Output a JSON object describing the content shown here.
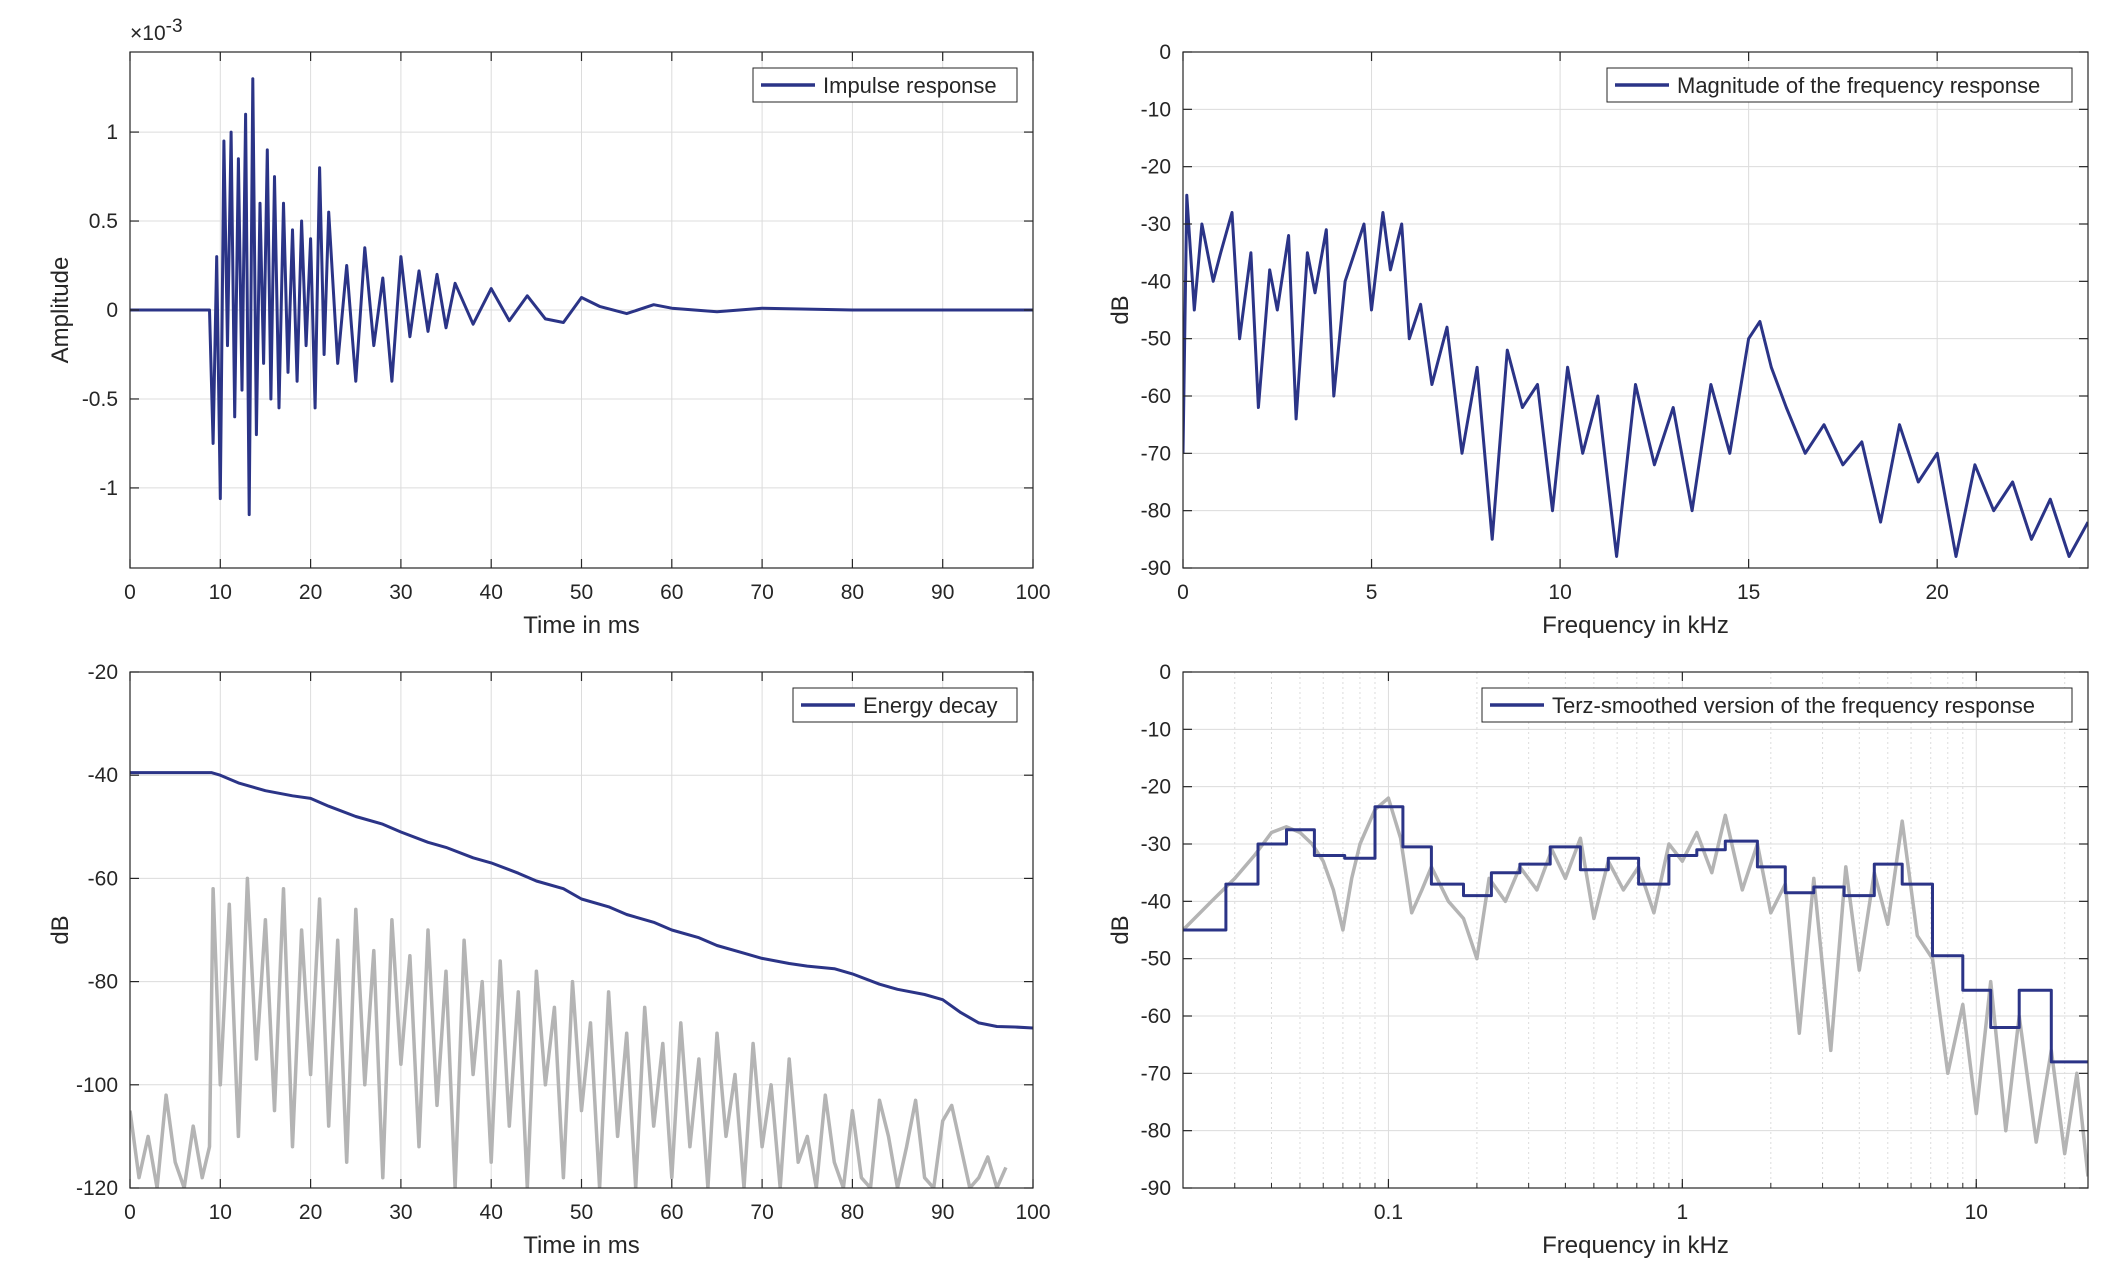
{
  "colors": {
    "main_series": "#2b3487",
    "secondary_series": "#b4b4b4",
    "grid": "#dcdcdc",
    "axes": "#262626"
  },
  "chart_data": [
    {
      "type": "line",
      "title": "",
      "legend": "Impulse response",
      "legend_position": "top-right",
      "xlabel": "Time in ms",
      "ylabel": "Amplitude",
      "exponent_label": "×10",
      "exponent_power": "-3",
      "xlim": [
        0,
        100
      ],
      "ylim": [
        -1.45,
        1.45
      ],
      "xticks": [
        0,
        10,
        20,
        30,
        40,
        50,
        60,
        70,
        80,
        90,
        100
      ],
      "xtick_labels": [
        "0",
        "10",
        "20",
        "30",
        "40",
        "50",
        "60",
        "70",
        "80",
        "90",
        "100"
      ],
      "yticks": [
        -1,
        -0.5,
        0,
        0.5,
        1
      ],
      "ytick_labels": [
        "-1",
        "-0.5",
        "0",
        "0.5",
        "1"
      ],
      "grid": true,
      "series": [
        {
          "name": "Impulse response",
          "x": [
            0,
            8.8,
            9.2,
            9.6,
            10.0,
            10.4,
            10.8,
            11.2,
            11.6,
            12.0,
            12.4,
            12.8,
            13.2,
            13.6,
            14.0,
            14.4,
            14.8,
            15.2,
            15.6,
            16.0,
            16.5,
            17.0,
            17.5,
            18.0,
            18.5,
            19.0,
            19.5,
            20.0,
            20.5,
            21.0,
            21.5,
            22.0,
            23.0,
            24.0,
            25.0,
            26.0,
            27.0,
            28.0,
            29.0,
            30.0,
            31.0,
            32.0,
            33.0,
            34.0,
            35.0,
            36.0,
            38.0,
            40.0,
            42.0,
            44.0,
            46.0,
            48.0,
            50.0,
            52.0,
            55.0,
            58.0,
            60.0,
            65.0,
            70.0,
            80.0,
            90.0,
            100.0
          ],
          "y": [
            0,
            0,
            -0.75,
            0.3,
            -1.06,
            0.95,
            -0.2,
            1.0,
            -0.6,
            0.85,
            -0.45,
            1.1,
            -1.15,
            1.3,
            -0.7,
            0.6,
            -0.3,
            0.9,
            -0.5,
            0.75,
            -0.55,
            0.6,
            -0.35,
            0.45,
            -0.4,
            0.5,
            -0.2,
            0.4,
            -0.55,
            0.8,
            -0.25,
            0.55,
            -0.3,
            0.25,
            -0.4,
            0.35,
            -0.2,
            0.18,
            -0.4,
            0.3,
            -0.15,
            0.22,
            -0.12,
            0.2,
            -0.1,
            0.15,
            -0.08,
            0.12,
            -0.06,
            0.08,
            -0.05,
            -0.07,
            0.07,
            0.02,
            -0.02,
            0.03,
            0.01,
            -0.01,
            0.01,
            0,
            0,
            0
          ]
        }
      ]
    },
    {
      "type": "line",
      "title": "",
      "legend": "Magnitude of the frequency response",
      "legend_position": "top-right",
      "xlabel": "Frequency in kHz",
      "ylabel": "dB",
      "xlim": [
        0,
        24
      ],
      "ylim": [
        -90,
        0
      ],
      "xticks": [
        0,
        5,
        10,
        15,
        20
      ],
      "xtick_labels": [
        "0",
        "5",
        "10",
        "15",
        "20"
      ],
      "yticks": [
        0,
        -10,
        -20,
        -30,
        -40,
        -50,
        -60,
        -70,
        -80,
        -90
      ],
      "ytick_labels": [
        "0",
        "-10",
        "-20",
        "-30",
        "-40",
        "-50",
        "-60",
        "-70",
        "-80",
        "-90"
      ],
      "grid": true,
      "series": [
        {
          "name": "Magnitude of the frequency response",
          "x": [
            0,
            0.1,
            0.3,
            0.5,
            0.8,
            1.0,
            1.3,
            1.5,
            1.8,
            2.0,
            2.3,
            2.5,
            2.8,
            3.0,
            3.3,
            3.5,
            3.8,
            4.0,
            4.3,
            4.5,
            4.8,
            5.0,
            5.3,
            5.5,
            5.8,
            6.0,
            6.3,
            6.6,
            7.0,
            7.4,
            7.8,
            8.2,
            8.6,
            9.0,
            9.4,
            9.8,
            10.2,
            10.6,
            11.0,
            11.5,
            12.0,
            12.5,
            13.0,
            13.5,
            14.0,
            14.5,
            15.0,
            15.3,
            15.6,
            16.0,
            16.5,
            17.0,
            17.5,
            18.0,
            18.5,
            19.0,
            19.5,
            20.0,
            20.5,
            21.0,
            21.5,
            22.0,
            22.5,
            23.0,
            23.5,
            24.0
          ],
          "y": [
            -70,
            -25,
            -45,
            -30,
            -40,
            -35,
            -28,
            -50,
            -35,
            -62,
            -38,
            -45,
            -32,
            -64,
            -35,
            -42,
            -31,
            -60,
            -40,
            -36,
            -30,
            -45,
            -28,
            -38,
            -30,
            -50,
            -44,
            -58,
            -48,
            -70,
            -55,
            -85,
            -52,
            -62,
            -58,
            -80,
            -55,
            -70,
            -60,
            -88,
            -58,
            -72,
            -62,
            -80,
            -58,
            -70,
            -50,
            -47,
            -55,
            -62,
            -70,
            -65,
            -72,
            -68,
            -82,
            -65,
            -75,
            -70,
            -88,
            -72,
            -80,
            -75,
            -85,
            -78,
            -88,
            -82
          ]
        }
      ]
    },
    {
      "type": "line",
      "title": "",
      "legend": "Energy decay",
      "legend_position": "top-right",
      "xlabel": "Time in ms",
      "ylabel": "dB",
      "xlim": [
        0,
        100
      ],
      "ylim": [
        -120,
        -20
      ],
      "xticks": [
        0,
        10,
        20,
        30,
        40,
        50,
        60,
        70,
        80,
        90,
        100
      ],
      "xtick_labels": [
        "0",
        "10",
        "20",
        "30",
        "40",
        "50",
        "60",
        "70",
        "80",
        "90",
        "100"
      ],
      "yticks": [
        -20,
        -40,
        -60,
        -80,
        -100,
        -120
      ],
      "ytick_labels": [
        "-20",
        "-40",
        "-60",
        "-80",
        "-100",
        "-120"
      ],
      "grid": true,
      "series": [
        {
          "name": "Energy decay",
          "x": [
            0,
            5,
            9,
            10,
            12,
            15,
            18,
            20,
            22,
            25,
            28,
            30,
            33,
            35,
            38,
            40,
            43,
            45,
            48,
            50,
            53,
            55,
            58,
            60,
            63,
            65,
            68,
            70,
            73,
            75,
            78,
            80,
            83,
            85,
            88,
            90,
            92,
            94,
            96,
            98,
            100
          ],
          "y": [
            -39.5,
            -39.5,
            -39.5,
            -40,
            -41.5,
            -43,
            -44,
            -44.5,
            -46,
            -48,
            -49.5,
            -51,
            -53,
            -54,
            -56,
            -57,
            -59,
            -60.5,
            -62,
            -64,
            -65.5,
            -67,
            -68.5,
            -70,
            -71.5,
            -73,
            -74.5,
            -75.5,
            -76.5,
            -77,
            -77.5,
            -78.5,
            -80.5,
            -81.5,
            -82.5,
            -83.5,
            -86,
            -88,
            -88.7,
            -88.8,
            -89
          ]
        },
        {
          "x": [
            0,
            1,
            2,
            3,
            4,
            5,
            6,
            7,
            8,
            8.8,
            9.2,
            10,
            11,
            12,
            13,
            14,
            15,
            16,
            17,
            18,
            19,
            20,
            21,
            22,
            23,
            24,
            25,
            26,
            27,
            28,
            29,
            30,
            31,
            32,
            33,
            34,
            35,
            36,
            37,
            38,
            39,
            40,
            41,
            42,
            43,
            44,
            45,
            46,
            47,
            48,
            49,
            50,
            51,
            52,
            53,
            54,
            55,
            56,
            57,
            58,
            59,
            60,
            61,
            62,
            63,
            64,
            65,
            66,
            67,
            68,
            69,
            70,
            71,
            72,
            73,
            74,
            75,
            76,
            77,
            78,
            79,
            80,
            81,
            82,
            83,
            84,
            85,
            86,
            87,
            88,
            89,
            90,
            91,
            92,
            93,
            94,
            95,
            96,
            97
          ],
          "y": [
            -105,
            -118,
            -110,
            -120,
            -102,
            -115,
            -120,
            -108,
            -118,
            -112,
            -62,
            -100,
            -65,
            -110,
            -60,
            -95,
            -68,
            -105,
            -62,
            -112,
            -70,
            -98,
            -64,
            -108,
            -72,
            -115,
            -66,
            -100,
            -74,
            -118,
            -68,
            -96,
            -75,
            -112,
            -70,
            -104,
            -78,
            -120,
            -72,
            -98,
            -80,
            -115,
            -76,
            -108,
            -82,
            -120,
            -78,
            -100,
            -85,
            -118,
            -80,
            -105,
            -88,
            -120,
            -82,
            -110,
            -90,
            -120,
            -85,
            -108,
            -92,
            -118,
            -88,
            -112,
            -95,
            -120,
            -90,
            -110,
            -98,
            -120,
            -92,
            -112,
            -100,
            -120,
            -95,
            -115,
            -110,
            -120,
            -102,
            -115,
            -120,
            -105,
            -118,
            -120,
            -103,
            -110,
            -120,
            -112,
            -103,
            -118,
            -120,
            -107,
            -104,
            -112,
            -120,
            -118,
            -114,
            -120,
            -116
          ]
        }
      ]
    },
    {
      "type": "line",
      "title": "",
      "legend": "Terz-smoothed version of the frequency response",
      "legend_position": "top-right",
      "xlabel": "Frequency in kHz",
      "ylabel": "dB",
      "xscale": "log",
      "xlim": [
        0.02,
        24
      ],
      "ylim": [
        -90,
        0
      ],
      "xticks": [
        0.1,
        1,
        10
      ],
      "xtick_labels": [
        "0.1",
        "1",
        "10"
      ],
      "yticks": [
        0,
        -10,
        -20,
        -30,
        -40,
        -50,
        -60,
        -70,
        -80,
        -90
      ],
      "ytick_labels": [
        "0",
        "-10",
        "-20",
        "-30",
        "-40",
        "-50",
        "-60",
        "-70",
        "-80",
        "-90"
      ],
      "grid": true,
      "series": [
        {
          "name": "Terz-smoothed version of the frequency response",
          "x": [
            0.02,
            0.028,
            0.028,
            0.036,
            0.036,
            0.045,
            0.045,
            0.056,
            0.056,
            0.071,
            0.071,
            0.09,
            0.09,
            0.112,
            0.112,
            0.14,
            0.14,
            0.18,
            0.18,
            0.224,
            0.224,
            0.28,
            0.28,
            0.355,
            0.355,
            0.45,
            0.45,
            0.56,
            0.56,
            0.71,
            0.71,
            0.9,
            0.9,
            1.12,
            1.12,
            1.4,
            1.4,
            1.8,
            1.8,
            2.24,
            2.24,
            2.8,
            2.8,
            3.55,
            3.55,
            4.5,
            4.5,
            5.6,
            5.6,
            7.1,
            7.1,
            9.0,
            9.0,
            11.2,
            11.2,
            14.0,
            14.0,
            18.0,
            18.0,
            24.0
          ],
          "y": [
            -45,
            -45,
            -37,
            -37,
            -30,
            -30,
            -27.5,
            -27.5,
            -32,
            -32,
            -32.5,
            -32.5,
            -23.5,
            -23.5,
            -30.5,
            -30.5,
            -37,
            -37,
            -39,
            -39,
            -35,
            -35,
            -33.5,
            -33.5,
            -30.5,
            -30.5,
            -34.5,
            -34.5,
            -32.5,
            -32.5,
            -37,
            -37,
            -32,
            -32,
            -31,
            -31,
            -29.5,
            -29.5,
            -34,
            -34,
            -38.5,
            -38.5,
            -37.5,
            -37.5,
            -39,
            -39,
            -33.5,
            -33.5,
            -37,
            -37,
            -49.5,
            -49.5,
            -55.5,
            -55.5,
            -62,
            -62,
            -55.5,
            -55.5,
            -68,
            -68
          ]
        },
        {
          "x": [
            0.02,
            0.025,
            0.03,
            0.035,
            0.04,
            0.045,
            0.05,
            0.055,
            0.06,
            0.065,
            0.07,
            0.075,
            0.08,
            0.09,
            0.1,
            0.11,
            0.12,
            0.13,
            0.14,
            0.16,
            0.18,
            0.2,
            0.22,
            0.25,
            0.28,
            0.32,
            0.36,
            0.4,
            0.45,
            0.5,
            0.56,
            0.63,
            0.71,
            0.8,
            0.9,
            1.0,
            1.12,
            1.26,
            1.4,
            1.6,
            1.8,
            2.0,
            2.24,
            2.5,
            2.8,
            3.2,
            3.6,
            4.0,
            4.5,
            5.0,
            5.6,
            6.3,
            7.1,
            8.0,
            9.0,
            10.0,
            11.2,
            12.6,
            14.0,
            16.0,
            18.0,
            20.0,
            22.0,
            24.0
          ],
          "y": [
            -45,
            -40,
            -36,
            -32,
            -28,
            -27,
            -28,
            -30,
            -33,
            -38,
            -45,
            -36,
            -30,
            -24,
            -22,
            -29,
            -42,
            -38,
            -34,
            -40,
            -43,
            -50,
            -36,
            -40,
            -34,
            -38,
            -31,
            -36,
            -29,
            -43,
            -33,
            -38,
            -34,
            -42,
            -30,
            -33,
            -28,
            -35,
            -25,
            -38,
            -30,
            -42,
            -37,
            -63,
            -36,
            -66,
            -34,
            -52,
            -35,
            -44,
            -26,
            -46,
            -50,
            -70,
            -58,
            -77,
            -54,
            -80,
            -60,
            -82,
            -66,
            -84,
            -70,
            -88
          ]
        }
      ]
    }
  ]
}
